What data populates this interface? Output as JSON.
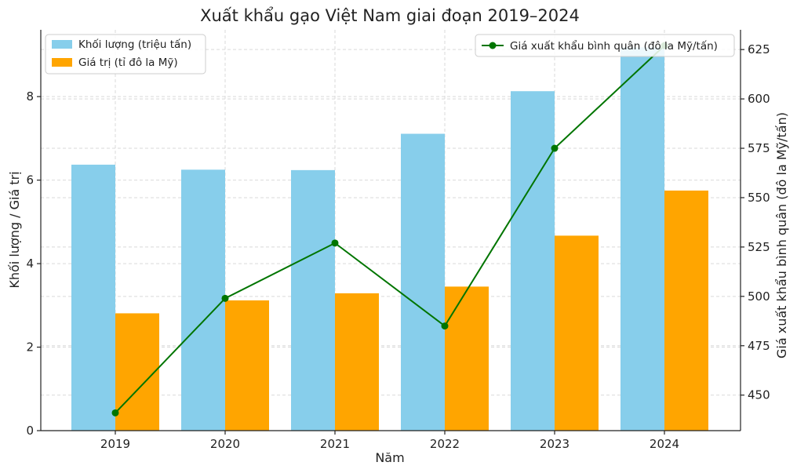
{
  "chart_data": {
    "type": "bar",
    "title": "Xuất khẩu gạo Việt Nam giai đoạn 2019–2024",
    "xlabel": "Năm",
    "ylabel": "Khối lượng / Giá trị",
    "y2label": "Giá xuất khẩu bình quân (đô la Mỹ/tấn)",
    "categories": [
      "2019",
      "2020",
      "2021",
      "2022",
      "2023",
      "2024"
    ],
    "series": [
      {
        "name": "Khối lượng (triệu tấn)",
        "type": "bar",
        "axis": "left",
        "color": "#87ceeb",
        "values": [
          6.37,
          6.25,
          6.24,
          7.11,
          8.13,
          9.18
        ]
      },
      {
        "name": "Giá trị (tỉ đô la Mỹ)",
        "type": "bar",
        "axis": "left",
        "color": "#ffa500",
        "values": [
          2.81,
          3.12,
          3.29,
          3.45,
          4.67,
          5.75
        ]
      }
    ],
    "line_series": {
      "name": "Giá xuất khẩu bình quân (đô la Mỹ/tấn)",
      "type": "line",
      "axis": "right",
      "color": "#007500",
      "values": [
        441,
        499,
        527,
        485,
        575,
        627
      ]
    },
    "ylim": [
      0,
      9.6
    ],
    "yticks": [
      0,
      2,
      4,
      6,
      8
    ],
    "y2lim": [
      432,
      635
    ],
    "y2ticks": [
      450,
      475,
      500,
      525,
      550,
      575,
      600,
      625
    ],
    "grid": true,
    "legend_left_placement": "top-left",
    "legend_right_placement": "top-right"
  }
}
